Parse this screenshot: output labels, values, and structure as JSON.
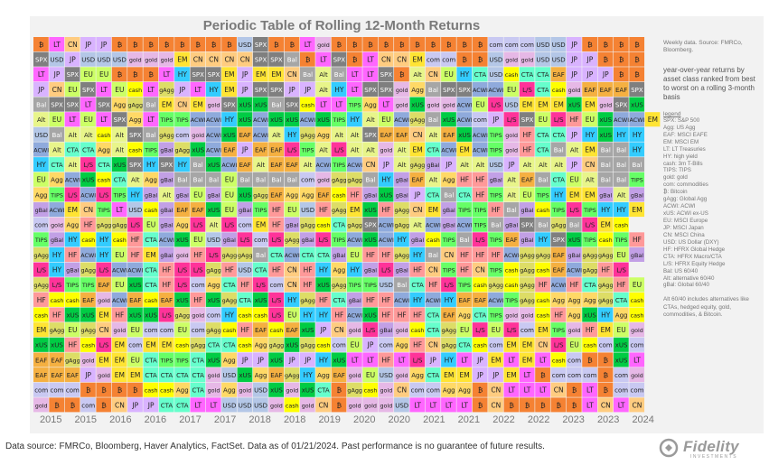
{
  "title": "Periodic Table of Rolling 12-Month Returns",
  "source_note": "Weekly data. Source: FMRCo, Bloomberg.",
  "description": "year-over-year returns by asset class ranked from best to worst on a rolling 3-month basis",
  "legend_heading": "legend",
  "legend": [
    "SPX: S&P 500",
    "Agg: US Agg",
    "EAF: MSCI EAFE",
    "EM: MSCI EM",
    "LT: LT Treasuries",
    "HY: high yield",
    "cash: 3m T-Bills",
    "TIPS: TIPS",
    "gold: gold",
    "com: commodities",
    "₿: Bitcoin",
    "gAgg: Global Agg",
    "ACWI: ACWI",
    "xUS: ACWI ex-US",
    "EU: MSCI Europe",
    "JP: MSCI Japan",
    "CN: MSCI China",
    "USD: US Dollar (DXY)",
    "HF: HFRX Global Hedge",
    "CTA: HFRX Macro/CTA",
    "L/S: HFRX Equity Hedge",
    "Bal: US 60/40",
    "Alt: alternative 60/40",
    "gBal: Global 60/40"
  ],
  "note": "Alt 60/40 includes alternatives like CTAs, hedged equity, gold, commodities, & Bitcoin.",
  "footer": "Data source: FMRCo, Bloomberg, Haver Analytics, FactSet. Data as of 01/21/2024. Past performance is no guarantee of future results.",
  "logo": {
    "text": "Fidelity",
    "sub": "INVESTMENTS"
  },
  "chart_data": {
    "type": "table",
    "title": "Periodic Table of Rolling 12-Month Returns",
    "x_tick_labels": [
      "2015",
      "2015",
      "2016",
      "2016",
      "2017",
      "2017",
      "2018",
      "2018",
      "2019",
      "2020",
      "2020",
      "2021",
      "2021",
      "2022",
      "2022",
      "2023",
      "2023",
      "2024"
    ],
    "colors": {
      "₿": "#f58233",
      "SPX": "#7f7f7f",
      "Agg": "#ffd966",
      "EAF": "#f5b041",
      "EM": "#ffe433",
      "LT": "#ff66ff",
      "HY": "#33ccff",
      "cash": "#ffff00",
      "TIPS": "#66ff66",
      "gold": "#e6b8e6",
      "com": "#c9c9f2",
      "gAgg": "#dddd66",
      "ACWI": "#8faadc",
      "xUS": "#00cc44",
      "EU": "#ccff66",
      "JP": "#d9b3ff",
      "CN": "#ffcc80",
      "USD": "#b4c7e7",
      "HF": "#ff9999",
      "CTA": "#66ffcc",
      "L/S": "#ff3399",
      "Bal": "#a6a6a6",
      "Alt": "#e8f58a",
      "gBal": "#c2a0e6"
    },
    "rows": [
      "₿ LT CN JP JP ₿ ₿ ₿ ₿ ₿ ₿ ₿ ₿ USD SPX ₿ ₿ LT gold ₿ ₿ ₿ ₿ ₿ ₿ ₿ ₿ ₿ ₿ com com com USD USD JP ₿ ₿ ₿ ₿",
      "SPX USD JP USD USD USD gold gold gold EM CN CN CN CN SPX SPX Bal ₿ LT SPX ₿ LT CN CN EM com com ₿ ₿ USD gold gold USD USD JP JP ₿ ₿ ₿",
      "LT JP SPX EU EU ₿ ₿ ₿ LT HY SPX SPX EM JP EM EM CN Bal Alt Bal LT LT SPX ₿ Alt CN EU HY CTA USD cash CTA CTA EAF JP JP JP ₿ ₿",
      "JP CN EU SPX LT EU cash LT gAgg JP LT HY EM JP SPX SPX JP JP Alt HY LT SPX SPX gold Agg Bal SPX SPX ACWI ACWI EU L/S CTA cash gold EAF EAF EAF SPX",
      "Bal SPX SPX LT SPX Agg gAgg Bal EM CN EM gold SPX xUS xUS Bal SPX cash LT LT TIPS Agg LT gold xUS gold gold ACWI EU L/S USD EM EM EM xUS EM gold SPX xUS",
      "Alt EU LT EU LT SPX Agg LT TIPS TIPS ACWI ACWI HY xUS ACWI xUS xUS ACWI xUS TIPS HY Alt EU ACWI gAgg Bal xUS ACWI com JP L/S SPX EU L/S HF EU xUS ACWI ACWI EM",
      "USD Bal Alt Alt cash Alt SPX Bal gAgg com gold ACWI xUS EAF ACWI Alt HY gAgg Agg Alt Alt SPX EAF EAF CN Alt EAF xUS ACWI TIPS gold HF CTA CTA JP HY xUS HY HY",
      "ACWI Alt CTA CTA Agg Alt cash TIPS gBal gAgg xUS ACWI EAF JP EAF EAF L/S TIPS Alt L/S Alt Alt gold Alt EM CTA ACWI EM ACWI TIPS gold HF CTA Bal Alt EM Bal Bal HY",
      "HY CTA Alt L/S CTA xUS SPX HY SPX HY Bal xUS ACWI EAF Alt EAF EAF Alt ACWI TIPS ACWI CN JP Alt gAgg gBal JP Alt Alt USD JP Alt Alt Alt JP CN Bal Bal Bal",
      "EU Agg ACWI xUS cash CTA Alt Agg gBal Bal Bal Bal EU Bal Bal Bal Bal com gold gAgg gAgg Bal HY gBal EAF Alt Agg HF HF gBal Alt EAF Bal CTA EU Alt Bal Bal TIPS",
      "Agg TIPS L/S ACWI L/S TIPS HY gBal Alt gBal EU gBal EU xUS gAgg EAF Agg Agg EAF cash HF gBal xUS gBal JP CTA Bal CTA HF TIPS Alt EU TIPS HY EM EM gBal Alt gBal",
      "gBal ACWI EM CN TIPS LT USD cash gBal EAF EAF xUS EU gBal TIPS HF EU USD HF gAgg EM xUS HF gAgg CN EM gBal TIPS TIPS HF Bal gBal cash TIPS L/S TIPS HY HY EM",
      "com gold Agg HF gAgg gAgg L/S EU gBal Agg L/S Alt L/S com EM HF gBal gAgg cash CTA gAgg SPX ACWI gAgg Alt ACWI gBal ACWI TIPS Bal gBal SPX Bal gAgg Bal L/S EM cash",
      "TIPS gBal HY cash HY cash HF CTA ACWI xUS EU USD gBal L/S com L/S gAgg gBal L/S TIPS ACWI xUS ACWI HY gBal cash TIPS Bal L/S TIPS EAF gBal HY SPX xUS TIPS cash TIPS HF",
      "gAgg HY HF ACWI HY EU HF EM gBal gold HF L/S gAgg gAgg Bal CTA ACWI CTA CTA gBal EU HF HF gAgg HY Bal CN HF HF HF ACWI gAgg gAgg EAF gBal gAgg gAgg EU gBal",
      "L/S HY gBal gAgg L/S ACWI ACWI CTA HF L/S L/S gAgg HF USD CTA HF CN HF HY Agg HY gBal L/S gBal HF CN TIPS HF CN TIPS cash gAgg cash EAF ACWI gAgg HF L/S",
      "gAgg L/S TIPS TIPS EAF EU xUS CTA HF L/S com Agg CTA HF L/S com CN HF xUS gAgg TIPS TIPS USD Bal CTA HF L/S TIPS cash gAgg cash gAgg HF ACWI HF CTA gAgg HF EU",
      "HF cash cash EAF gold ACWI EAF cash EAF xUS HF xUS gAgg CTA xUS L/S HY gAgg HF CTA gBal HF HF ACWI HY ACWI HY EAF EAF ACWI TIPS gAgg cash Agg Agg Agg gAgg CTA cash",
      "cash HF xUS xUS EM HF xUS xUS L/S gAgg gold com HY cash cash L/S EU HY HY HF ACWI xUS HF HF HF CTA EAF Agg CTA TIPS gold gold cash HF Agg xUS HY Agg cash",
      "EM gAgg EU gAgg CN gold EU com com EU com gAgg cash HF EAF cash EAF xUS JP CN gold L/S gBal gold cash CTA gAgg EU L/S EU L/S com EM TIPS gold HF EM EU gold",
      "xUS xUS HF cash L/S EM com EM EM cash gAgg CTA CTA cash Agg gAgg xUS gAgg cash com EU JP com Agg HF CN gAgg CTA cash com EM EM CN L/S EU cash com xUS com",
      "EAF EAF gAgg gold EM EM EU CTA TIPS TIPS CTA xUS Agg JP JP xUS JP JP HY xUS LT LT HF LT L/S JP HY LT JP EM LT EM LT cash com ₿ ₿ xUS LT",
      "EAF EAF EAF JP gold EM EM CTA CTA CTA CTA gold USD xUS Agg EAF gAgg HY Agg EAF gold EU USD gold Agg CTA EM EM JP JP EM LT ₿ com com com ₿ com gold",
      "com com com ₿ ₿ ₿ ₿ cash cash Agg CTA gold Agg gold USD xUS gold xUS CTA ₿ gAgg cash gold CN com com Agg Agg ₿ CN LT LT LT CN ₿ LT ₿ com com",
      "gold ₿ ₿ com ₿ CN JP JP CTA CTA LT LT USD USD USD gold cash gold CN ₿ gold gold gold USD LT LT LT LT ₿ CN ₿ ₿ ₿ ₿ ₿ LT CN LT CN"
    ]
  }
}
